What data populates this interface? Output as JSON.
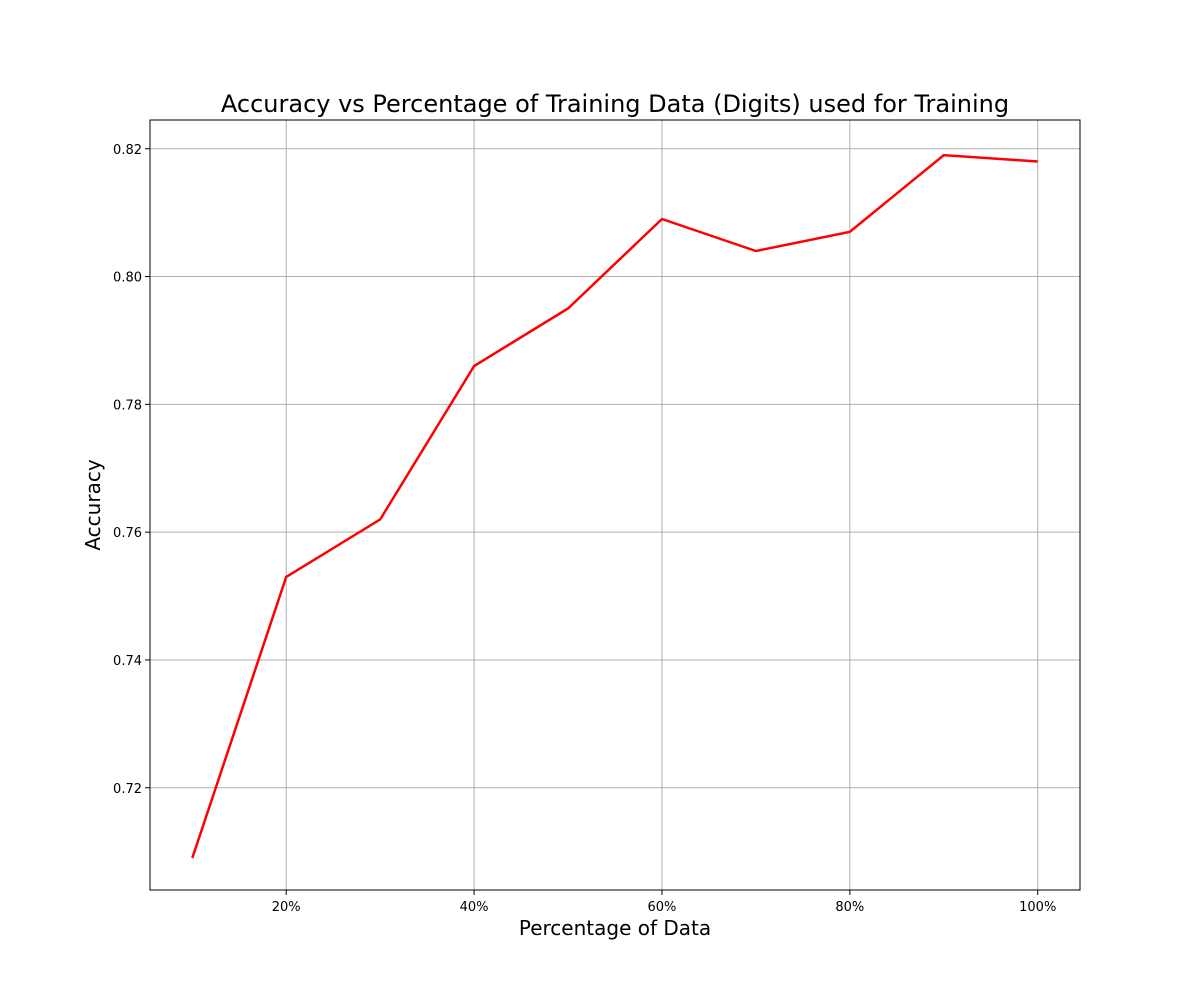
{
  "chart_data": {
    "type": "line",
    "title": "Accuracy vs Percentage of Training Data (Digits) used for Training",
    "xlabel": "Percentage of Data",
    "ylabel": "Accuracy",
    "x": [
      10,
      20,
      30,
      40,
      50,
      60,
      70,
      80,
      90,
      100
    ],
    "x_unit": "%",
    "series": [
      {
        "values": [
          0.709,
          0.753,
          0.762,
          0.786,
          0.795,
          0.809,
          0.804,
          0.807,
          0.819,
          0.818
        ],
        "color": "#ff0000"
      }
    ],
    "xlim": [
      5.5,
      104.5
    ],
    "ylim": [
      0.704,
      0.8245
    ],
    "xticks": [
      20,
      40,
      60,
      80,
      100
    ],
    "xtick_labels": [
      "20%",
      "40%",
      "60%",
      "80%",
      "100%"
    ],
    "yticks": [
      0.72,
      0.74,
      0.76,
      0.78,
      0.8,
      0.82
    ],
    "ytick_labels": [
      "0.72",
      "0.74",
      "0.76",
      "0.78",
      "0.80",
      "0.82"
    ],
    "grid": true,
    "legend": "none"
  }
}
